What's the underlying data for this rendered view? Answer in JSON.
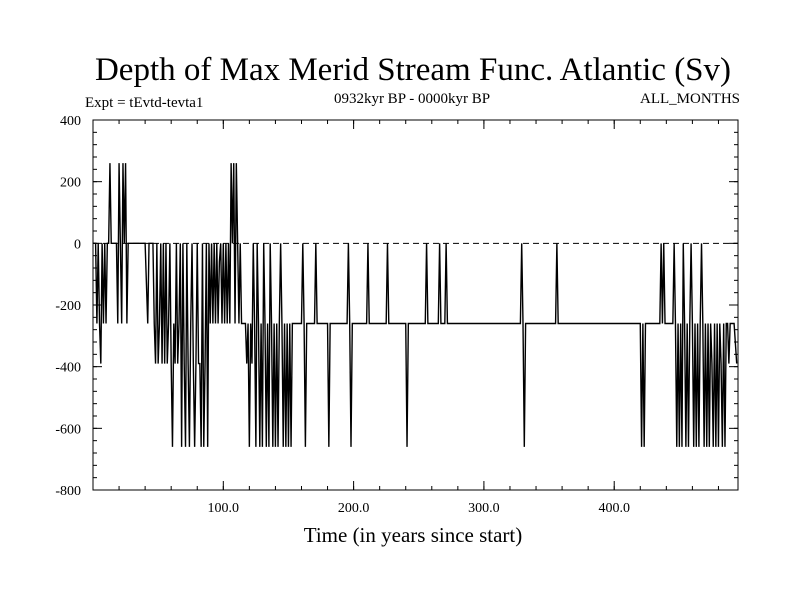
{
  "chart_data": {
    "type": "line",
    "title": "Depth of Max Merid Stream Func. Atlantic (Sv)",
    "subtitle_left": "Expt = tEvtd-tevta1",
    "subtitle_center": "0932kyr BP - 0000kyr BP",
    "subtitle_right": "ALL_MONTHS",
    "xlabel": "Time (in years since start)",
    "ylabel": "",
    "xlim": [
      0,
      495
    ],
    "ylim": [
      -800,
      400
    ],
    "x_ticks": [
      {
        "value": 100,
        "label": "100.0"
      },
      {
        "value": 200,
        "label": "200.0"
      },
      {
        "value": 300,
        "label": "300.0"
      },
      {
        "value": 400,
        "label": "400.0"
      }
    ],
    "y_ticks": [
      {
        "value": 400,
        "label": "400"
      },
      {
        "value": 200,
        "label": "200"
      },
      {
        "value": 0,
        "label": "0"
      },
      {
        "value": -200,
        "label": "-200"
      },
      {
        "value": -400,
        "label": "-400"
      },
      {
        "value": -600,
        "label": "-600"
      },
      {
        "value": -800,
        "label": "-800"
      }
    ],
    "reference_line": {
      "y": 0,
      "style": "dashed"
    },
    "colors": {
      "line": "#000000",
      "frame": "#000000",
      "background": "#ffffff"
    },
    "series": [
      {
        "values": [
          [
            0,
            0
          ],
          [
            2,
            0
          ],
          [
            3,
            -260
          ],
          [
            4,
            0
          ],
          [
            5,
            -260
          ],
          [
            6,
            -390
          ],
          [
            7,
            0
          ],
          [
            8,
            -260
          ],
          [
            9,
            0
          ],
          [
            10,
            -260
          ],
          [
            11,
            0
          ],
          [
            12,
            0
          ],
          [
            13,
            260
          ],
          [
            14,
            0
          ],
          [
            17,
            0
          ],
          [
            18,
            0
          ],
          [
            19,
            -260
          ],
          [
            20,
            260
          ],
          [
            21,
            0
          ],
          [
            22,
            -260
          ],
          [
            23,
            260
          ],
          [
            24,
            0
          ],
          [
            25,
            260
          ],
          [
            26,
            -260
          ],
          [
            27,
            0
          ],
          [
            30,
            0
          ],
          [
            35,
            0
          ],
          [
            40,
            0
          ],
          [
            42,
            -260
          ],
          [
            43,
            0
          ],
          [
            46,
            0
          ],
          [
            47,
            -260
          ],
          [
            48,
            -390
          ],
          [
            49,
            0
          ],
          [
            50,
            -390
          ],
          [
            51,
            -260
          ],
          [
            52,
            0
          ],
          [
            53,
            -390
          ],
          [
            54,
            0
          ],
          [
            55,
            -390
          ],
          [
            56,
            0
          ],
          [
            57,
            -390
          ],
          [
            58,
            -260
          ],
          [
            59,
            0
          ],
          [
            60,
            -390
          ],
          [
            61,
            -660
          ],
          [
            62,
            -260
          ],
          [
            63,
            -390
          ],
          [
            64,
            0
          ],
          [
            65,
            -390
          ],
          [
            66,
            -260
          ],
          [
            67,
            0
          ],
          [
            68,
            -660
          ],
          [
            69,
            0
          ],
          [
            70,
            -390
          ],
          [
            71,
            -660
          ],
          [
            72,
            0
          ],
          [
            73,
            -390
          ],
          [
            74,
            -660
          ],
          [
            75,
            -260
          ],
          [
            76,
            0
          ],
          [
            77,
            -390
          ],
          [
            78,
            -660
          ],
          [
            79,
            -390
          ],
          [
            80,
            0
          ],
          [
            81,
            -390
          ],
          [
            82,
            -390
          ],
          [
            83,
            -660
          ],
          [
            84,
            0
          ],
          [
            85,
            -660
          ],
          [
            86,
            -390
          ],
          [
            87,
            0
          ],
          [
            88,
            -660
          ],
          [
            89,
            0
          ],
          [
            90,
            -260
          ],
          [
            91,
            0
          ],
          [
            92,
            -260
          ],
          [
            93,
            0
          ],
          [
            94,
            -260
          ],
          [
            95,
            0
          ],
          [
            96,
            -260
          ],
          [
            97,
            -60
          ],
          [
            98,
            0
          ],
          [
            99,
            -260
          ],
          [
            100,
            0
          ],
          [
            101,
            -260
          ],
          [
            102,
            0
          ],
          [
            103,
            -260
          ],
          [
            104,
            0
          ],
          [
            105,
            -260
          ],
          [
            106,
            260
          ],
          [
            107,
            0
          ],
          [
            108,
            260
          ],
          [
            109,
            -260
          ],
          [
            110,
            260
          ],
          [
            111,
            0
          ],
          [
            112,
            -260
          ],
          [
            113,
            0
          ],
          [
            114,
            -260
          ],
          [
            115,
            -260
          ],
          [
            117,
            -260
          ],
          [
            118,
            -390
          ],
          [
            119,
            -260
          ],
          [
            120,
            -660
          ],
          [
            121,
            -260
          ],
          [
            122,
            -390
          ],
          [
            123,
            0
          ],
          [
            124,
            -260
          ],
          [
            125,
            -660
          ],
          [
            126,
            0
          ],
          [
            127,
            -260
          ],
          [
            128,
            -660
          ],
          [
            129,
            -260
          ],
          [
            130,
            -660
          ],
          [
            131,
            0
          ],
          [
            132,
            -260
          ],
          [
            133,
            -660
          ],
          [
            134,
            -260
          ],
          [
            135,
            -660
          ],
          [
            136,
            0
          ],
          [
            137,
            -260
          ],
          [
            138,
            -660
          ],
          [
            139,
            -260
          ],
          [
            140,
            -660
          ],
          [
            141,
            -260
          ],
          [
            142,
            -660
          ],
          [
            143,
            -260
          ],
          [
            144,
            0
          ],
          [
            145,
            -260
          ],
          [
            146,
            -660
          ],
          [
            147,
            -260
          ],
          [
            148,
            -660
          ],
          [
            149,
            -260
          ],
          [
            150,
            -660
          ],
          [
            151,
            -260
          ],
          [
            152,
            -660
          ],
          [
            153,
            -260
          ],
          [
            155,
            -260
          ],
          [
            160,
            -260
          ],
          [
            161,
            0
          ],
          [
            162,
            -260
          ],
          [
            163,
            -660
          ],
          [
            164,
            -260
          ],
          [
            165,
            -260
          ],
          [
            170,
            -260
          ],
          [
            171,
            0
          ],
          [
            172,
            -260
          ],
          [
            180,
            -260
          ],
          [
            181,
            -660
          ],
          [
            182,
            -260
          ],
          [
            190,
            -260
          ],
          [
            195,
            -260
          ],
          [
            196,
            0
          ],
          [
            197,
            -260
          ],
          [
            198,
            -660
          ],
          [
            199,
            -260
          ],
          [
            200,
            -260
          ],
          [
            210,
            -260
          ],
          [
            211,
            0
          ],
          [
            212,
            -260
          ],
          [
            220,
            -260
          ],
          [
            225,
            -260
          ],
          [
            226,
            0
          ],
          [
            227,
            -260
          ],
          [
            240,
            -260
          ],
          [
            241,
            -660
          ],
          [
            242,
            -260
          ],
          [
            250,
            -260
          ],
          [
            255,
            -260
          ],
          [
            256,
            0
          ],
          [
            257,
            -260
          ],
          [
            260,
            -260
          ],
          [
            265,
            -260
          ],
          [
            266,
            0
          ],
          [
            267,
            -260
          ],
          [
            270,
            -260
          ],
          [
            271,
            0
          ],
          [
            272,
            -260
          ],
          [
            280,
            -260
          ],
          [
            290,
            -260
          ],
          [
            300,
            -260
          ],
          [
            310,
            -260
          ],
          [
            320,
            -260
          ],
          [
            328,
            -260
          ],
          [
            329,
            0
          ],
          [
            330,
            -260
          ],
          [
            331,
            -660
          ],
          [
            332,
            -260
          ],
          [
            340,
            -260
          ],
          [
            350,
            -260
          ],
          [
            355,
            -260
          ],
          [
            356,
            0
          ],
          [
            357,
            -260
          ],
          [
            360,
            -260
          ],
          [
            370,
            -260
          ],
          [
            380,
            -260
          ],
          [
            390,
            -260
          ],
          [
            400,
            -260
          ],
          [
            410,
            -260
          ],
          [
            420,
            -260
          ],
          [
            421,
            -660
          ],
          [
            422,
            -260
          ],
          [
            423,
            -660
          ],
          [
            424,
            -260
          ],
          [
            430,
            -260
          ],
          [
            435,
            -260
          ],
          [
            436,
            0
          ],
          [
            437,
            -260
          ],
          [
            438,
            0
          ],
          [
            439,
            -260
          ],
          [
            440,
            -260
          ],
          [
            445,
            -260
          ],
          [
            446,
            0
          ],
          [
            447,
            -260
          ],
          [
            448,
            -660
          ],
          [
            449,
            -260
          ],
          [
            450,
            -660
          ],
          [
            451,
            -260
          ],
          [
            452,
            -660
          ],
          [
            453,
            0
          ],
          [
            454,
            -260
          ],
          [
            455,
            -660
          ],
          [
            456,
            -260
          ],
          [
            457,
            -660
          ],
          [
            458,
            -260
          ],
          [
            459,
            0
          ],
          [
            460,
            -260
          ],
          [
            461,
            -660
          ],
          [
            462,
            -260
          ],
          [
            463,
            -660
          ],
          [
            464,
            -260
          ],
          [
            465,
            -660
          ],
          [
            466,
            -260
          ],
          [
            467,
            0
          ],
          [
            468,
            -260
          ],
          [
            469,
            -660
          ],
          [
            470,
            -260
          ],
          [
            471,
            -660
          ],
          [
            472,
            -260
          ],
          [
            473,
            -660
          ],
          [
            474,
            -260
          ],
          [
            475,
            -390
          ],
          [
            476,
            -660
          ],
          [
            477,
            -260
          ],
          [
            478,
            -660
          ],
          [
            479,
            -260
          ],
          [
            480,
            -660
          ],
          [
            481,
            -260
          ],
          [
            482,
            -390
          ],
          [
            483,
            -660
          ],
          [
            484,
            -260
          ],
          [
            485,
            -660
          ],
          [
            486,
            -260
          ],
          [
            487,
            -260
          ],
          [
            488,
            -390
          ],
          [
            489,
            -260
          ],
          [
            490,
            -260
          ],
          [
            492,
            -260
          ],
          [
            494,
            -390
          ]
        ]
      }
    ]
  }
}
